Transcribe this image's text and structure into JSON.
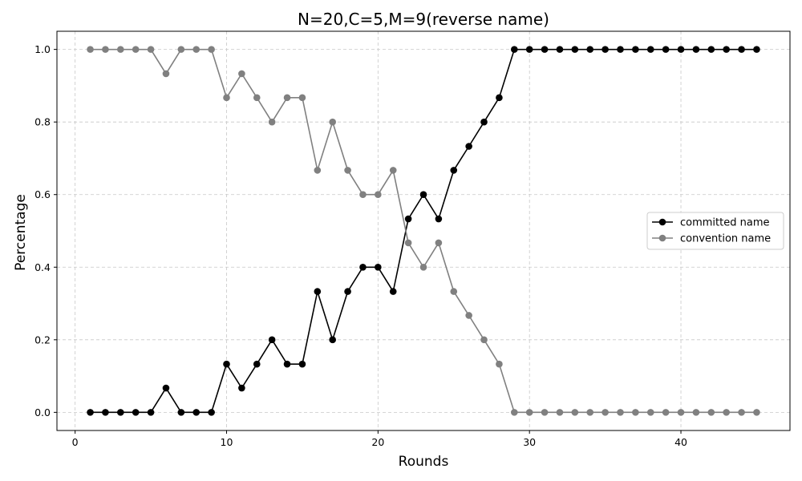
{
  "chart_data": {
    "type": "line",
    "title": "N=20,C=5,M=9(reverse name)",
    "xlabel": "Rounds",
    "ylabel": "Percentage",
    "xlim": [
      -1.2,
      47.2
    ],
    "ylim": [
      -0.05,
      1.05
    ],
    "xticks": [
      0,
      10,
      20,
      30,
      40
    ],
    "yticks": [
      "0.0",
      "0.2",
      "0.4",
      "0.6",
      "0.8",
      "1.0"
    ],
    "grid": true,
    "legend_position": "center-right",
    "x": [
      1,
      2,
      3,
      4,
      5,
      6,
      7,
      8,
      9,
      10,
      11,
      12,
      13,
      14,
      15,
      16,
      17,
      18,
      19,
      20,
      21,
      22,
      23,
      24,
      25,
      26,
      27,
      28,
      29,
      30,
      31,
      32,
      33,
      34,
      35,
      36,
      37,
      38,
      39,
      40,
      41,
      42,
      43,
      44,
      45
    ],
    "series": [
      {
        "name": "committed name",
        "color": "#000000",
        "values": [
          0,
          0,
          0,
          0,
          0,
          0.067,
          0,
          0,
          0,
          0.133,
          0.067,
          0.133,
          0.2,
          0.133,
          0.133,
          0.333,
          0.2,
          0.333,
          0.4,
          0.4,
          0.333,
          0.533,
          0.6,
          0.533,
          0.667,
          0.733,
          0.8,
          0.867,
          1,
          1,
          1,
          1,
          1,
          1,
          1,
          1,
          1,
          1,
          1,
          1,
          1,
          1,
          1,
          1,
          1
        ]
      },
      {
        "name": "convention name",
        "color": "#808080",
        "values": [
          1,
          1,
          1,
          1,
          1,
          0.933,
          1,
          1,
          1,
          0.867,
          0.933,
          0.867,
          0.8,
          0.867,
          0.867,
          0.667,
          0.8,
          0.667,
          0.6,
          0.6,
          0.667,
          0.467,
          0.4,
          0.467,
          0.333,
          0.267,
          0.2,
          0.133,
          0,
          0,
          0,
          0,
          0,
          0,
          0,
          0,
          0,
          0,
          0,
          0,
          0,
          0,
          0,
          0,
          0
        ]
      }
    ]
  }
}
